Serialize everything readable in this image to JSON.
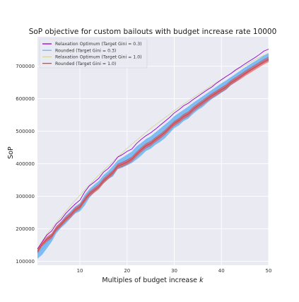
{
  "chart_data": {
    "type": "line",
    "title": "SoP objective for custom bailouts with budget increase rate 10000",
    "xlabel": "Multiples of budget increase k",
    "xlabel_parts": [
      "Multiples of budget increase ",
      "k"
    ],
    "ylabel": "SoP",
    "xlim": [
      1,
      50
    ],
    "ylim": [
      88000,
      790000
    ],
    "x_ticks": [
      10,
      20,
      30,
      40,
      50
    ],
    "x_tick_labels": [
      "10",
      "20",
      "30",
      "40",
      "50"
    ],
    "y_ticks": [
      100000,
      200000,
      300000,
      400000,
      500000,
      600000,
      700000
    ],
    "y_tick_labels": [
      "100000",
      "200000",
      "300000",
      "400000",
      "500000",
      "600000",
      "700000"
    ],
    "grid": true,
    "background": "#eaeaf2",
    "legend_position": "top-left",
    "x": [
      1,
      2,
      3,
      4,
      5,
      6,
      7,
      8,
      9,
      10,
      11,
      12,
      13,
      14,
      15,
      16,
      17,
      18,
      19,
      20,
      21,
      22,
      23,
      24,
      25,
      26,
      27,
      28,
      29,
      30,
      31,
      32,
      33,
      34,
      35,
      36,
      37,
      38,
      39,
      40,
      41,
      42,
      43,
      44,
      45,
      46,
      47,
      48,
      49,
      50
    ],
    "series": [
      {
        "name": "Relaxation Optimum (Target Gini = 0.3)",
        "color": "#9400d3",
        "style": "line",
        "values": [
          138000,
          160000,
          181000,
          193000,
          215000,
          228000,
          247000,
          262000,
          276000,
          288000,
          313000,
          332000,
          343000,
          355000,
          374000,
          385000,
          401000,
          420000,
          428000,
          438000,
          445000,
          462000,
          475000,
          486000,
          495000,
          506000,
          518000,
          530000,
          542000,
          556000,
          566000,
          578000,
          586000,
          597000,
          607000,
          617000,
          627000,
          636000,
          648000,
          658000,
          668000,
          677000,
          688000,
          697000,
          707000,
          716000,
          725000,
          735000,
          746000,
          752000
        ]
      },
      {
        "name": "Rounded (Target Gini = 0.3)",
        "color": "#6bb5f5",
        "style": "band",
        "lower": [
          108000,
          120000,
          140000,
          160000,
          186000,
          203000,
          216000,
          232000,
          247000,
          254000,
          271000,
          295000,
          311000,
          324000,
          339000,
          353000,
          361000,
          383000,
          388000,
          395000,
          402000,
          413000,
          425000,
          439000,
          446000,
          458000,
          467000,
          478000,
          494000,
          509000,
          518000,
          531000,
          539000,
          553000,
          565000,
          574000,
          587000,
          599000,
          608000,
          618000,
          627000,
          641000,
          651000,
          662000,
          673000,
          683000,
          692000,
          701000,
          709000,
          717000
        ],
        "upper": [
          141000,
          155000,
          173000,
          185000,
          208000,
          222000,
          240000,
          254000,
          269000,
          279000,
          304000,
          322000,
          335000,
          347000,
          365000,
          377000,
          393000,
          410000,
          419000,
          428000,
          437000,
          453000,
          464000,
          476000,
          484000,
          496000,
          508000,
          520000,
          532000,
          546000,
          556000,
          566000,
          576000,
          587000,
          597000,
          607000,
          617000,
          627000,
          637000,
          647000,
          656000,
          666000,
          676000,
          686000,
          696000,
          705000,
          714000,
          723000,
          733000,
          740000
        ]
      },
      {
        "name": "Relaxation Optimum (Target Gini = 1.0)",
        "color": "#d2d6a0",
        "style": "line",
        "values": [
          135000,
          162000,
          184000,
          201000,
          219000,
          236000,
          254000,
          271000,
          287000,
          303000,
          319000,
          335000,
          350000,
          365000,
          379000,
          393000,
          407000,
          421000,
          434000,
          447000,
          460000,
          472000,
          484000,
          496000,
          508000,
          519000,
          530000,
          541000,
          552000,
          563000,
          573000,
          583000,
          593000,
          603000,
          613000,
          622000,
          632000,
          641000,
          650000,
          659000,
          668000,
          677000,
          685000,
          694000,
          702000,
          710000,
          718000,
          726000,
          733000,
          740000
        ]
      },
      {
        "name": "Rounded (Target Gini = 1.0)",
        "color": "#e8403a",
        "style": "band",
        "values": [
          130000,
          153000,
          168000,
          178000,
          200000,
          214000,
          230000,
          242000,
          258000,
          268000,
          289000,
          307000,
          318000,
          329000,
          347000,
          360000,
          373000,
          392000,
          398000,
          405000,
          414000,
          429000,
          443000,
          455000,
          462000,
          474000,
          484000,
          496000,
          510000,
          524000,
          533000,
          545000,
          553000,
          567000,
          578000,
          588000,
          599000,
          609000,
          618000,
          627000,
          636000,
          649000,
          658000,
          667000,
          677000,
          686000,
          695000,
          704000,
          713000,
          720000
        ],
        "lower": [
          124000,
          146000,
          160000,
          170000,
          192000,
          206000,
          222000,
          234000,
          250000,
          260000,
          281000,
          299000,
          310000,
          321000,
          339000,
          352000,
          365000,
          384000,
          390000,
          397000,
          406000,
          421000,
          435000,
          447000,
          454000,
          466000,
          476000,
          488000,
          502000,
          516000,
          525000,
          537000,
          545000,
          559000,
          570000,
          580000,
          591000,
          601000,
          610000,
          619000,
          628000,
          641000,
          650000,
          659000,
          669000,
          678000,
          687000,
          696000,
          705000,
          712000
        ],
        "upper": [
          136000,
          160000,
          176000,
          186000,
          208000,
          222000,
          238000,
          250000,
          266000,
          276000,
          297000,
          315000,
          326000,
          337000,
          355000,
          368000,
          381000,
          400000,
          406000,
          413000,
          422000,
          437000,
          451000,
          463000,
          470000,
          482000,
          492000,
          504000,
          518000,
          532000,
          541000,
          553000,
          561000,
          575000,
          586000,
          596000,
          607000,
          617000,
          626000,
          635000,
          644000,
          657000,
          666000,
          675000,
          685000,
          694000,
          703000,
          712000,
          721000,
          728000
        ]
      }
    ]
  }
}
